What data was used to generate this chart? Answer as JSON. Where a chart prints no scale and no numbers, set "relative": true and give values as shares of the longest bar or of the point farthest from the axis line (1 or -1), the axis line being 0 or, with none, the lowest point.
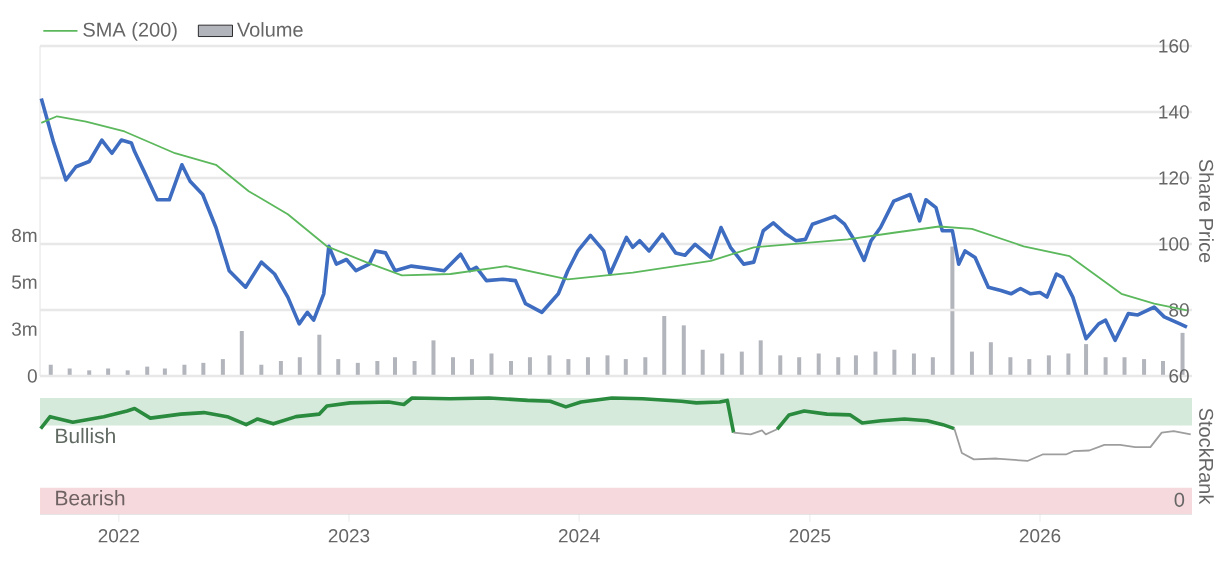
{
  "chart_data": [
    {
      "type": "line",
      "xlim": [
        "2021-08-29",
        "2026-08-30"
      ],
      "ylim": [
        60,
        160
      ],
      "yticks": [
        60,
        80,
        100,
        120,
        140,
        160
      ],
      "ylabel": "Share Price",
      "y2lim": [
        0,
        17.6
      ],
      "y2ticks": [
        0,
        {
          "value": 2.5,
          "label": "3m"
        },
        {
          "value": 5,
          "label": "5m"
        },
        {
          "value": 7.5,
          "label": "8m"
        }
      ],
      "grid": "y",
      "legend": "top left",
      "tick_labels": "y",
      "series": [
        {
          "color": "#3d6cc0",
          "x": [
            "2021-08-31",
            "2021-09-19",
            "2021-10-09",
            "2021-10-25",
            "2021-11-15",
            "2021-12-05",
            "2021-12-21",
            "2022-01-05",
            "2022-01-21",
            "2022-01-26",
            "2022-02-10",
            "2022-03-03",
            "2022-03-22",
            "2022-04-11",
            "2022-04-24",
            "2022-05-14",
            "2022-06-04",
            "2022-06-25",
            "2022-07-21",
            "2022-08-15",
            "2022-09-05",
            "2022-09-26",
            "2022-10-14",
            "2022-10-27",
            "2022-11-06",
            "2022-11-22",
            "2022-11-30",
            "2022-12-12",
            "2022-12-28",
            "2023-01-12",
            "2023-02-02",
            "2023-02-12",
            "2023-02-28",
            "2023-03-15",
            "2023-04-10",
            "2023-05-11",
            "2023-06-01",
            "2023-06-27",
            "2023-07-12",
            "2023-07-22",
            "2023-08-07",
            "2023-09-02",
            "2023-09-22",
            "2023-10-08",
            "2023-11-03",
            "2023-11-29",
            "2023-12-14",
            "2023-12-30",
            "2024-01-19",
            "2024-02-09",
            "2024-02-19",
            "2024-03-16",
            "2024-03-26",
            "2024-04-06",
            "2024-04-21",
            "2024-05-12",
            "2024-06-02",
            "2024-06-17",
            "2024-07-03",
            "2024-07-28",
            "2024-08-13",
            "2024-08-28",
            "2024-09-18",
            "2024-10-04",
            "2024-10-19",
            "2024-11-04",
            "2024-11-24",
            "2024-12-10",
            "2024-12-25",
            "2025-01-05",
            "2025-01-20",
            "2025-02-10",
            "2025-02-25",
            "2025-03-13",
            "2025-03-28",
            "2025-04-08",
            "2025-04-23",
            "2025-05-14",
            "2025-06-09",
            "2025-06-24",
            "2025-07-04",
            "2025-07-20",
            "2025-07-30",
            "2025-08-15",
            "2025-08-25",
            "2025-09-04",
            "2025-09-20",
            "2025-10-11",
            "2025-10-31",
            "2025-11-16",
            "2025-12-01",
            "2025-12-17",
            "2026-01-01",
            "2026-01-12",
            "2026-01-27",
            "2026-02-06",
            "2026-02-22",
            "2026-03-15",
            "2026-04-04",
            "2026-04-15",
            "2026-04-30",
            "2026-05-21",
            "2026-06-05",
            "2026-07-01",
            "2026-07-17",
            "2026-08-11",
            "2026-08-22"
          ],
          "values": [
            144.1,
            131.1,
            119.4,
            123.4,
            125,
            131.5,
            127.5,
            131.5,
            130.6,
            128,
            122,
            113.4,
            113.4,
            124,
            119,
            115,
            105,
            91.9,
            86.9,
            94.5,
            90.9,
            83.9,
            75.8,
            79.3,
            76.9,
            84.9,
            99.3,
            93.9,
            95.3,
            91.9,
            93.9,
            97.9,
            97.3,
            91.9,
            93.3,
            92.5,
            91.9,
            96.9,
            91.9,
            92.9,
            88.9,
            89.3,
            88.9,
            81.9,
            79.3,
            84.9,
            91.9,
            97.9,
            102.6,
            97.9,
            90.9,
            102,
            99,
            101,
            97.9,
            103,
            97.3,
            96.6,
            99.9,
            95.9,
            105,
            99,
            93.9,
            94.5,
            104,
            106.4,
            103,
            101,
            101.4,
            106,
            107,
            108.4,
            106,
            101,
            95,
            101,
            105,
            113,
            115,
            107,
            113.4,
            111,
            104,
            104,
            93.9,
            97.9,
            95.9,
            86.9,
            85.9,
            84.9,
            86.5,
            84.9,
            85.3,
            83.9,
            90.9,
            89.9,
            83.9,
            71.3,
            75.8,
            76.9,
            70.8,
            78.9,
            78.5,
            80.9,
            77.9,
            75.8,
            74.8
          ]
        },
        {
          "name": "SMA (200)",
          "color": "#5cb85c",
          "x": [
            "2021-08-31",
            "2021-09-25",
            "2021-11-10",
            "2022-01-10",
            "2022-03-31",
            "2022-06-04",
            "2022-07-26",
            "2022-09-26",
            "2022-11-27",
            "2023-01-28",
            "2023-03-26",
            "2023-06-11",
            "2023-09-07",
            "2023-12-14",
            "2024-03-26",
            "2024-07-28",
            "2024-10-04",
            "2025-03-02",
            "2025-05-14",
            "2025-07-25",
            "2025-09-15",
            "2025-12-06",
            "2026-02-17",
            "2026-05-10",
            "2026-07-01",
            "2026-08-22"
          ],
          "values": [
            136.7,
            138.7,
            137.1,
            134.1,
            127.5,
            124,
            116,
            109,
            99.3,
            94.5,
            90.5,
            90.9,
            93.3,
            89.3,
            91.3,
            94.9,
            99,
            101.4,
            103.4,
            105.3,
            104.6,
            99.3,
            96.3,
            84.9,
            81.9,
            79.9
          ]
        },
        {
          "name": "Volume",
          "type": "bar",
          "axis": "y2",
          "color": "#b3b5bd",
          "x": [
            "2021-09-15",
            "2021-10-15",
            "2021-11-15",
            "2021-12-15",
            "2022-01-15",
            "2022-02-15",
            "2022-03-15",
            "2022-04-15",
            "2022-05-15",
            "2022-06-15",
            "2022-07-15",
            "2022-08-15",
            "2022-09-15",
            "2022-10-15",
            "2022-11-15",
            "2022-12-15",
            "2023-01-15",
            "2023-02-15",
            "2023-03-15",
            "2023-04-15",
            "2023-05-15",
            "2023-06-15",
            "2023-07-15",
            "2023-08-15",
            "2023-09-15",
            "2023-10-15",
            "2023-11-15",
            "2023-12-15",
            "2024-01-15",
            "2024-02-15",
            "2024-03-15",
            "2024-04-15",
            "2024-05-15",
            "2024-06-15",
            "2024-07-15",
            "2024-08-15",
            "2024-09-15",
            "2024-10-15",
            "2024-11-15",
            "2024-12-15",
            "2025-01-15",
            "2025-02-15",
            "2025-03-15",
            "2025-04-15",
            "2025-05-15",
            "2025-06-15",
            "2025-07-15",
            "2025-08-15",
            "2025-09-15",
            "2025-10-15",
            "2025-11-15",
            "2025-12-15",
            "2026-01-15",
            "2026-02-15",
            "2026-03-15",
            "2026-04-15",
            "2026-05-15",
            "2026-06-15",
            "2026-07-15",
            "2026-08-15"
          ],
          "values": [
            0.6,
            0.4,
            0.3,
            0.4,
            0.3,
            0.5,
            0.4,
            0.6,
            0.7,
            0.9,
            2.4,
            0.6,
            0.8,
            1.0,
            2.2,
            0.9,
            0.7,
            0.8,
            1.0,
            0.8,
            1.9,
            1.0,
            0.9,
            1.2,
            0.8,
            1.0,
            1.1,
            0.9,
            1.0,
            1.1,
            0.9,
            1.0,
            3.2,
            2.7,
            1.4,
            1.2,
            1.3,
            1.9,
            1.1,
            1.0,
            1.2,
            1.0,
            1.1,
            1.3,
            1.4,
            1.2,
            1.0,
            6.9,
            1.3,
            1.8,
            1.0,
            0.9,
            1.1,
            1.2,
            1.7,
            1.0,
            1.0,
            0.9,
            0.8,
            2.3
          ]
        }
      ]
    },
    {
      "type": "line",
      "relative": true,
      "xlim": [
        "2021-08-29",
        "2026-08-30"
      ],
      "xticks": [
        {
          "value": "2022-01-01",
          "label": "2022"
        },
        {
          "value": "2023-01-01",
          "label": "2023"
        },
        {
          "value": "2024-01-01",
          "label": "2024"
        },
        {
          "value": "2025-01-01",
          "label": "2025"
        },
        {
          "value": "2026-01-01",
          "label": "2026"
        }
      ],
      "ylabel": "StockRank",
      "tick_labels": "x",
      "annotations": [
        "0"
      ],
      "bands": [
        {
          "axis": "y",
          "from": 0.763,
          "to": 1.0,
          "label": "Bullish",
          "color": "#d5eadb"
        },
        {
          "axis": "y",
          "from": 0,
          "to": 0.227,
          "label": "Bearish",
          "color": "#f6d9dc"
        }
      ],
      "series": [
        {
          "color": "#2a8a3e",
          "x": [
            "2021-08-30",
            "2021-09-14",
            "2021-10-20",
            "2021-12-08",
            "2022-01-14",
            "2022-01-26",
            "2022-02-20",
            "2022-04-09",
            "2022-05-16",
            "2022-06-22",
            "2022-07-22",
            "2022-08-09",
            "2022-09-03",
            "2022-10-09",
            "2022-11-15",
            "2022-11-27",
            "2023-01-03",
            "2023-03-05",
            "2023-03-29",
            "2023-04-11",
            "2023-06-10",
            "2023-08-11",
            "2023-10-11",
            "2023-11-16",
            "2023-12-11",
            "2024-01-04",
            "2024-02-22",
            "2024-04-11",
            "2024-06-11",
            "2024-07-05",
            "2024-08-11",
            "2024-08-23",
            "2024-09-02",
            "2024-10-01",
            "2024-11-10",
            "2024-11-29",
            "2024-12-23",
            "2025-01-28",
            "2025-03-06",
            "2025-03-25",
            "2025-04-24",
            "2025-05-31",
            "2025-07-06",
            "2025-07-31",
            "2025-08-18"
          ],
          "values": [
            0.736,
            0.839,
            0.791,
            0.839,
            0.888,
            0.909,
            0.826,
            0.861,
            0.874,
            0.839,
            0.77,
            0.819,
            0.777,
            0.839,
            0.861,
            0.931,
            0.958,
            0.965,
            0.944,
            1.0,
            0.993,
            1.0,
            0.979,
            0.972,
            0.923,
            0.965,
            1.0,
            0.993,
            0.972,
            0.958,
            0.965,
            0.979,
            0.701,
            null,
            0.73,
            0.854,
            0.888,
            0.861,
            0.854,
            0.784,
            0.804,
            0.819,
            0.804,
            0.77,
            0.736
          ]
        },
        {
          "color": "#9e9e9e",
          "x": [
            "2024-09-02",
            "2024-09-29",
            "2024-10-17",
            "2024-10-23",
            "2024-11-10",
            "2025-01-01",
            "2025-08-18",
            "2025-08-30",
            "2025-09-18",
            "2025-10-24",
            "2025-12-12",
            "2026-01-05",
            "2026-02-11",
            "2026-02-23",
            "2026-03-20",
            "2026-04-13",
            "2026-05-08",
            "2026-06-01",
            "2026-06-25",
            "2026-07-13",
            "2026-08-01",
            "2026-08-28"
          ],
          "values": [
            0.701,
            0.686,
            0.721,
            0.686,
            0.73,
            null,
            0.736,
            0.526,
            0.471,
            0.478,
            0.457,
            0.513,
            0.513,
            0.541,
            0.547,
            0.596,
            0.596,
            0.576,
            0.576,
            0.701,
            0.714,
            0.686
          ]
        }
      ]
    }
  ]
}
